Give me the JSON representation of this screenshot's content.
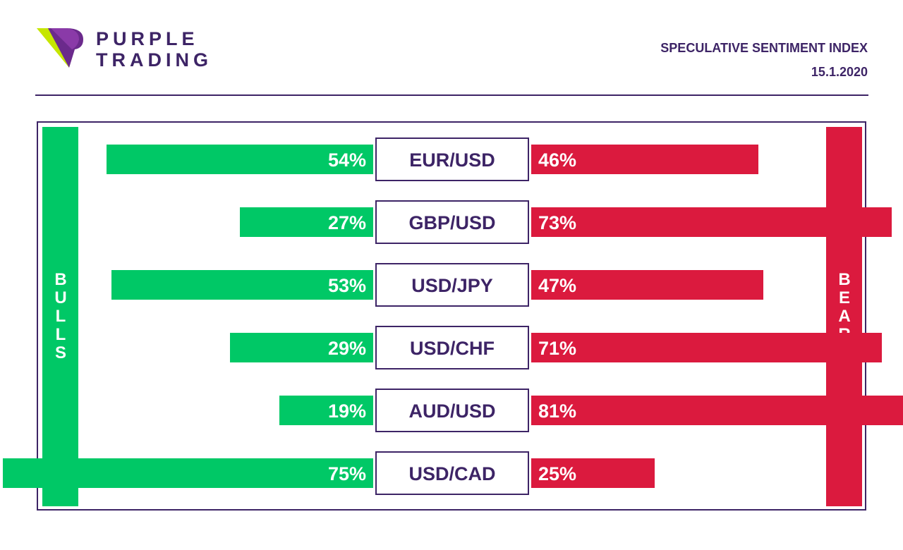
{
  "brand": {
    "line1": "PURPLE",
    "line2": "TRADING",
    "logo_icon": "purple-trading-logo-icon"
  },
  "header": {
    "title": "SPECULATIVE SENTIMENT INDEX",
    "date": "15.1.2020"
  },
  "colors": {
    "purple": "#3d2466",
    "bulls_green": "#00c866",
    "bears_red": "#db1a3e",
    "logo_lime": "#c6e600"
  },
  "chart_data": {
    "type": "bar",
    "left_label": "BULLS",
    "right_label": "BEARS",
    "categories": [
      "EUR/USD",
      "GBP/USD",
      "USD/JPY",
      "USD/CHF",
      "AUD/USD",
      "USD/CAD"
    ],
    "series": [
      {
        "name": "BULLS",
        "values": [
          54,
          27,
          53,
          29,
          19,
          75
        ],
        "labels": [
          "54%",
          "27%",
          "53%",
          "29%",
          "19%",
          "75%"
        ]
      },
      {
        "name": "BEARS",
        "values": [
          46,
          73,
          47,
          71,
          81,
          25
        ],
        "labels": [
          "46%",
          "73%",
          "47%",
          "71%",
          "81%",
          "25%"
        ]
      }
    ],
    "unit": "%",
    "xlim": [
      0,
      100
    ],
    "grid": false,
    "legend": "none"
  }
}
